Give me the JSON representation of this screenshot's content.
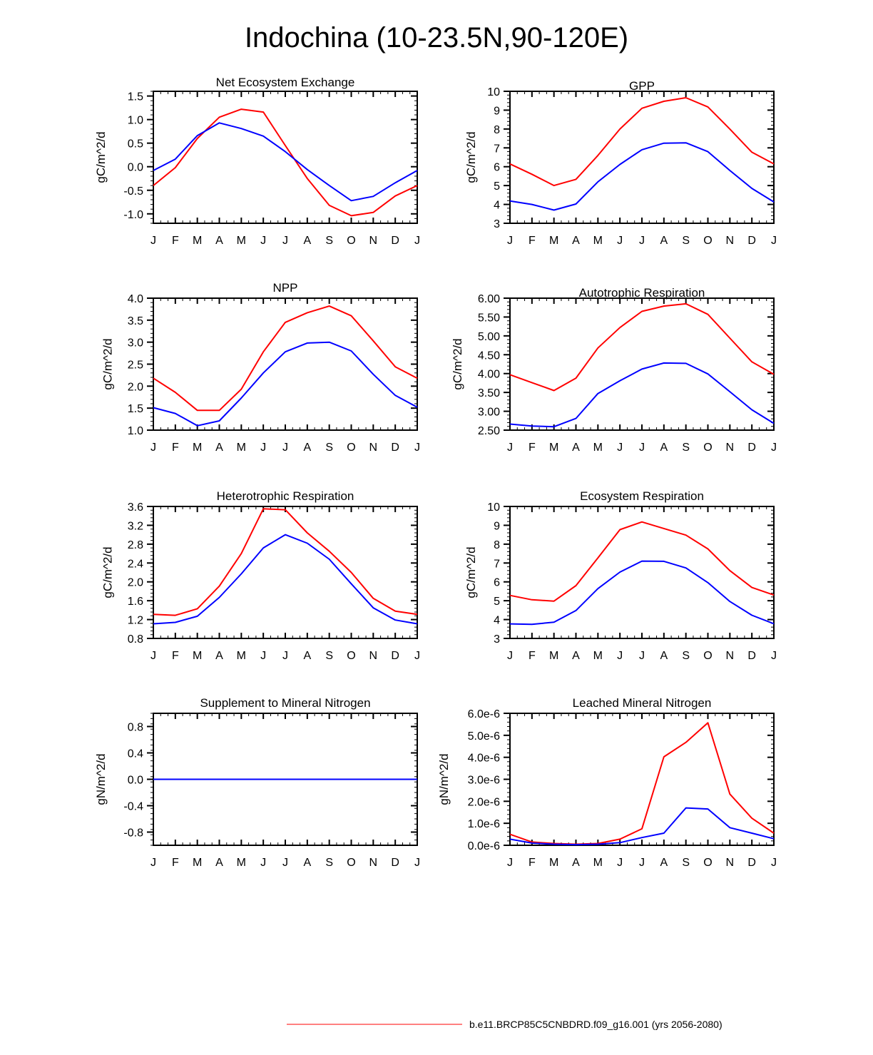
{
  "title": "Indochina (10-23.5N,90-120E)",
  "legend": {
    "entries": [
      {
        "label": "b.e11.BRCP85C5CNBDRD.f09_g16.001 (yrs 2056-2080)",
        "color": "#ff0000"
      }
    ],
    "placement": "bottom-center"
  },
  "chart_data": [
    {
      "type": "line",
      "title": "Net Ecosystem Exchange",
      "ylabel": "gC/m^2/d",
      "ylim": [
        -1.2,
        1.6
      ],
      "yticks": [
        -1.0,
        -0.5,
        0.0,
        0.5,
        1.0,
        1.5
      ],
      "ytick_labels": [
        "-1.0",
        "-0.5",
        "0.0",
        "0.5",
        "1.0",
        "1.5"
      ],
      "categories": [
        "J",
        "F",
        "M",
        "A",
        "M",
        "J",
        "J",
        "A",
        "S",
        "O",
        "N",
        "D",
        "J"
      ],
      "series": [
        {
          "name": "red",
          "color": "#ff0000",
          "values": [
            -0.4,
            -0.02,
            0.6,
            1.05,
            1.22,
            1.16,
            0.45,
            -0.25,
            -0.82,
            -1.04,
            -0.97,
            -0.62,
            -0.4
          ]
        },
        {
          "name": "blue",
          "color": "#0000ff",
          "values": [
            -0.08,
            0.16,
            0.66,
            0.93,
            0.81,
            0.65,
            0.32,
            -0.06,
            -0.4,
            -0.72,
            -0.63,
            -0.34,
            -0.08
          ]
        }
      ]
    },
    {
      "type": "line",
      "title": "GPP",
      "ylabel": "gC/m^2/d",
      "ylim": [
        3,
        10
      ],
      "yticks": [
        3,
        4,
        5,
        6,
        7,
        8,
        9,
        10
      ],
      "ytick_labels": [
        "3",
        "4",
        "5",
        "6",
        "7",
        "8",
        "9",
        "10"
      ],
      "categories": [
        "J",
        "F",
        "M",
        "A",
        "M",
        "J",
        "J",
        "A",
        "S",
        "O",
        "N",
        "D",
        "J"
      ],
      "series": [
        {
          "name": "red",
          "color": "#ff0000",
          "values": [
            6.15,
            5.6,
            5.0,
            5.33,
            6.6,
            8.0,
            9.1,
            9.47,
            9.66,
            9.17,
            8.0,
            6.77,
            6.15
          ]
        },
        {
          "name": "blue",
          "color": "#0000ff",
          "values": [
            4.18,
            4.0,
            3.7,
            4.02,
            5.2,
            6.12,
            6.9,
            7.25,
            7.27,
            6.8,
            5.8,
            4.85,
            4.13
          ]
        }
      ]
    },
    {
      "type": "line",
      "title": "NPP",
      "ylabel": "gC/m^2/d",
      "ylim": [
        1.0,
        4.0
      ],
      "yticks": [
        1.0,
        1.5,
        2.0,
        2.5,
        3.0,
        3.5,
        4.0
      ],
      "ytick_labels": [
        "1.0",
        "1.5",
        "2.0",
        "2.5",
        "3.0",
        "3.5",
        "4.0"
      ],
      "categories": [
        "J",
        "F",
        "M",
        "A",
        "M",
        "J",
        "J",
        "A",
        "S",
        "O",
        "N",
        "D",
        "J"
      ],
      "series": [
        {
          "name": "red",
          "color": "#ff0000",
          "values": [
            2.18,
            1.86,
            1.45,
            1.45,
            1.93,
            2.78,
            3.45,
            3.67,
            3.82,
            3.6,
            3.03,
            2.44,
            2.18
          ]
        },
        {
          "name": "blue",
          "color": "#0000ff",
          "values": [
            1.51,
            1.38,
            1.1,
            1.21,
            1.73,
            2.3,
            2.78,
            2.98,
            3.0,
            2.8,
            2.27,
            1.79,
            1.52
          ]
        }
      ]
    },
    {
      "type": "line",
      "title": "Autotrophic Respiration",
      "ylabel": "gC/m^2/d",
      "ylim": [
        2.5,
        6.0
      ],
      "yticks": [
        2.5,
        3.0,
        3.5,
        4.0,
        4.5,
        5.0,
        5.5,
        6.0
      ],
      "ytick_labels": [
        "2.50",
        "3.00",
        "3.50",
        "4.00",
        "4.50",
        "5.00",
        "5.50",
        "6.00"
      ],
      "categories": [
        "J",
        "F",
        "M",
        "A",
        "M",
        "J",
        "J",
        "A",
        "S",
        "O",
        "N",
        "D",
        "J"
      ],
      "series": [
        {
          "name": "red",
          "color": "#ff0000",
          "values": [
            3.97,
            3.76,
            3.55,
            3.88,
            4.68,
            5.22,
            5.65,
            5.79,
            5.85,
            5.57,
            4.94,
            4.31,
            3.98
          ]
        },
        {
          "name": "blue",
          "color": "#0000ff",
          "values": [
            2.66,
            2.61,
            2.59,
            2.81,
            3.47,
            3.81,
            4.12,
            4.28,
            4.27,
            3.99,
            3.52,
            3.04,
            2.68
          ]
        }
      ]
    },
    {
      "type": "line",
      "title": "Heterotrophic Respiration",
      "ylabel": "gC/m^2/d",
      "ylim": [
        0.8,
        3.6
      ],
      "yticks": [
        0.8,
        1.2,
        1.6,
        2.0,
        2.4,
        2.8,
        3.2,
        3.6
      ],
      "ytick_labels": [
        "0.8",
        "1.2",
        "1.6",
        "2.0",
        "2.4",
        "2.8",
        "3.2",
        "3.6"
      ],
      "categories": [
        "J",
        "F",
        "M",
        "A",
        "M",
        "J",
        "J",
        "A",
        "S",
        "O",
        "N",
        "D",
        "J"
      ],
      "series": [
        {
          "name": "red",
          "color": "#ff0000",
          "values": [
            1.31,
            1.29,
            1.43,
            1.91,
            2.6,
            3.55,
            3.53,
            3.04,
            2.65,
            2.2,
            1.65,
            1.38,
            1.31
          ]
        },
        {
          "name": "blue",
          "color": "#0000ff",
          "values": [
            1.11,
            1.14,
            1.27,
            1.67,
            2.17,
            2.72,
            3.0,
            2.82,
            2.48,
            1.96,
            1.45,
            1.19,
            1.11
          ]
        }
      ]
    },
    {
      "type": "line",
      "title": "Ecosystem Respiration",
      "ylabel": "gC/m^2/d",
      "ylim": [
        3,
        10
      ],
      "yticks": [
        3,
        4,
        5,
        6,
        7,
        8,
        9,
        10
      ],
      "ytick_labels": [
        "3",
        "4",
        "5",
        "6",
        "7",
        "8",
        "9",
        "10"
      ],
      "categories": [
        "J",
        "F",
        "M",
        "A",
        "M",
        "J",
        "J",
        "A",
        "S",
        "O",
        "N",
        "D",
        "J"
      ],
      "series": [
        {
          "name": "red",
          "color": "#ff0000",
          "values": [
            5.28,
            5.05,
            4.98,
            5.8,
            7.27,
            8.77,
            9.18,
            8.83,
            8.48,
            7.75,
            6.6,
            5.7,
            5.3
          ]
        },
        {
          "name": "blue",
          "color": "#0000ff",
          "values": [
            3.77,
            3.75,
            3.86,
            4.48,
            5.64,
            6.52,
            7.1,
            7.09,
            6.74,
            5.96,
            4.96,
            4.23,
            3.78
          ]
        }
      ]
    },
    {
      "type": "line",
      "title": "Supplement to Mineral Nitrogen",
      "ylabel": "gN/m^2/d",
      "ylim": [
        -1.0,
        1.0
      ],
      "yticks": [
        -0.8,
        -0.4,
        0.0,
        0.4,
        0.8
      ],
      "ytick_labels": [
        "-0.8",
        "-0.4",
        "0.0",
        "0.4",
        "0.8"
      ],
      "categories": [
        "J",
        "F",
        "M",
        "A",
        "M",
        "J",
        "J",
        "A",
        "S",
        "O",
        "N",
        "D",
        "J"
      ],
      "series": [
        {
          "name": "red",
          "color": "#ff0000",
          "values": [
            0,
            0,
            0,
            0,
            0,
            0,
            0,
            0,
            0,
            0,
            0,
            0,
            0
          ]
        },
        {
          "name": "blue",
          "color": "#0000ff",
          "values": [
            0,
            0,
            0,
            0,
            0,
            0,
            0,
            0,
            0,
            0,
            0,
            0,
            0
          ]
        }
      ]
    },
    {
      "type": "line",
      "title": "Leached Mineral Nitrogen",
      "ylabel": "gN/m^2/d",
      "ylim": [
        0,
        6e-06
      ],
      "yticks": [
        0,
        1e-06,
        2e-06,
        3e-06,
        4e-06,
        5e-06,
        6e-06
      ],
      "ytick_labels": [
        "0.0e-6",
        "1.0e-6",
        "2.0e-6",
        "3.0e-6",
        "4.0e-6",
        "5.0e-6",
        "6.0e-6"
      ],
      "categories": [
        "J",
        "F",
        "M",
        "A",
        "M",
        "J",
        "J",
        "A",
        "S",
        "O",
        "N",
        "D",
        "J"
      ],
      "series": [
        {
          "name": "red",
          "color": "#ff0000",
          "values": [
            5e-07,
            1.5e-07,
            8e-08,
            5e-08,
            8e-08,
            2.8e-07,
            7.5e-07,
            4.02e-06,
            4.68e-06,
            5.57e-06,
            2.33e-06,
            1.23e-06,
            5.5e-07
          ]
        },
        {
          "name": "blue",
          "color": "#0000ff",
          "values": [
            2.8e-07,
            1e-07,
            5e-08,
            3e-08,
            5e-08,
            1.2e-07,
            3.5e-07,
            5.5e-07,
            1.7e-06,
            1.65e-06,
            8e-07,
            5.5e-07,
            3e-07
          ]
        }
      ]
    }
  ]
}
